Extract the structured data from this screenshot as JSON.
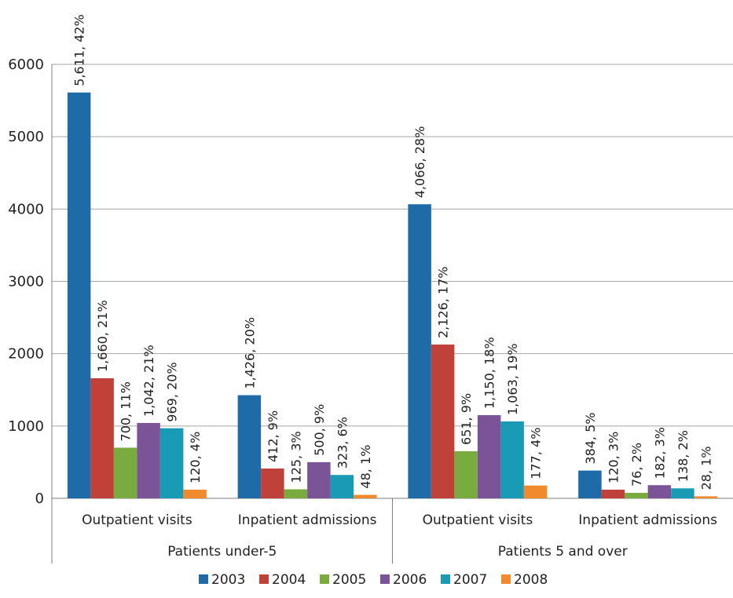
{
  "chart_data": {
    "type": "bar",
    "y_axis": {
      "ylim": [
        0,
        6000
      ],
      "ticks": [
        0,
        1000,
        2000,
        3000,
        4000,
        5000,
        6000
      ]
    },
    "grid": true,
    "legend_position": "bottom",
    "groups": [
      {
        "label": "Patients under-5",
        "categories": [
          {
            "label": "Outpatient visits"
          },
          {
            "label": "Inpatient admissions"
          }
        ]
      },
      {
        "label": "Patients 5 and over",
        "categories": [
          {
            "label": "Outpatient visits"
          },
          {
            "label": "Inpatient admissions"
          }
        ]
      }
    ],
    "series": [
      {
        "name": "2003",
        "color": "#1f6ba8",
        "values": [
          5611,
          1426,
          4066,
          384
        ],
        "labels": [
          "5,611, 42%",
          "1,426, 20%",
          "4,066, 28%",
          "384, 5%"
        ]
      },
      {
        "name": "2004",
        "color": "#c0403a",
        "values": [
          1660,
          412,
          2126,
          120
        ],
        "labels": [
          "1,660, 21%",
          "412, 9%",
          "2,126, 17%",
          "120, 3%"
        ]
      },
      {
        "name": "2005",
        "color": "#7aab3e",
        "values": [
          700,
          125,
          651,
          76
        ],
        "labels": [
          "700, 11%",
          "125, 3%",
          "651, 9%",
          "76, 2%"
        ]
      },
      {
        "name": "2006",
        "color": "#7a5497",
        "values": [
          1042,
          500,
          1150,
          182
        ],
        "labels": [
          "1,042, 21%",
          "500, 9%",
          "1,150, 18%",
          "182, 3%"
        ]
      },
      {
        "name": "2007",
        "color": "#1a9bb5",
        "values": [
          969,
          323,
          1063,
          138
        ],
        "labels": [
          "969, 20%",
          "323, 6%",
          "1,063, 19%",
          "138, 2%"
        ]
      },
      {
        "name": "2008",
        "color": "#f08a2c",
        "values": [
          120,
          48,
          177,
          28
        ],
        "labels": [
          "120, 4%",
          "48, 1%",
          "177, 4%",
          "28, 1%"
        ]
      }
    ]
  }
}
